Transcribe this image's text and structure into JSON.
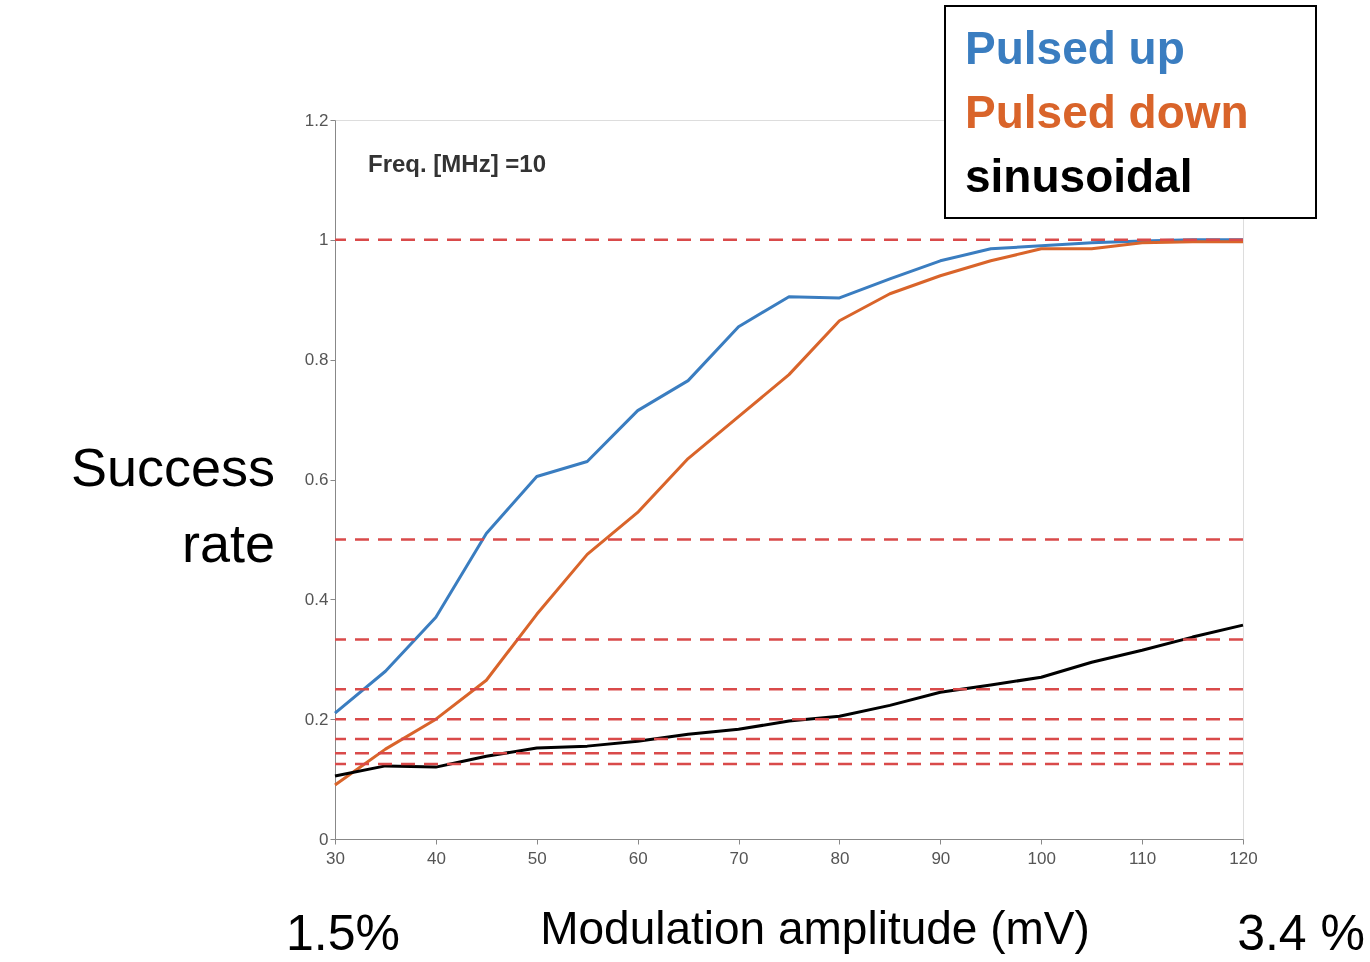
{
  "chart_data": {
    "type": "line",
    "xlabel": "Modulation amplitude (mV)",
    "ylabel": "Success rate",
    "annotations": [
      "Freq. [MHz] =10",
      "1.5%",
      "3.4 %"
    ],
    "x": [
      30,
      35,
      40,
      45,
      50,
      55,
      60,
      65,
      70,
      75,
      80,
      85,
      90,
      95,
      100,
      105,
      110,
      115,
      120
    ],
    "series": [
      {
        "name": "Pulsed up",
        "color": "#3a7dc0",
        "values": [
          0.21,
          0.28,
          0.37,
          0.51,
          0.605,
          0.63,
          0.715,
          0.765,
          0.855,
          0.905,
          0.903,
          0.935,
          0.965,
          0.985,
          0.99,
          0.995,
          0.998,
          1.0,
          1.0
        ]
      },
      {
        "name": "Pulsed down",
        "color": "#d9642a",
        "values": [
          0.09,
          0.15,
          0.2,
          0.265,
          0.375,
          0.475,
          0.545,
          0.635,
          0.705,
          0.775,
          0.865,
          0.91,
          0.94,
          0.965,
          0.985,
          0.985,
          0.995,
          0.997,
          0.997
        ]
      },
      {
        "name": "sinusoidal",
        "color": "#000000",
        "values": [
          0.105,
          0.122,
          0.12,
          0.138,
          0.152,
          0.155,
          0.163,
          0.175,
          0.183,
          0.197,
          0.205,
          0.223,
          0.245,
          0.257,
          0.27,
          0.295,
          0.315,
          0.337,
          0.357
        ]
      }
    ],
    "xlim": [
      30,
      120
    ],
    "xticks": [
      30,
      40,
      50,
      60,
      70,
      80,
      90,
      100,
      110,
      120
    ],
    "ylim": [
      0,
      1.2
    ],
    "yticks": [
      0,
      0.2,
      0.4,
      0.6,
      0.8,
      1,
      1.2
    ],
    "ref_lines": [
      {
        "axis": "y",
        "value": 1,
        "color": "#d94a4a",
        "line_style": "dashed"
      },
      {
        "axis": "y",
        "value": 0.5,
        "color": "#d94a4a",
        "line_style": "dashed"
      },
      {
        "axis": "y",
        "value": 0.333,
        "color": "#d94a4a",
        "line_style": "dashed"
      },
      {
        "axis": "y",
        "value": 0.25,
        "color": "#d94a4a",
        "line_style": "dashed"
      },
      {
        "axis": "y",
        "value": 0.2,
        "color": "#d94a4a",
        "line_style": "dashed"
      },
      {
        "axis": "y",
        "value": 0.167,
        "color": "#d94a4a",
        "line_style": "dashed"
      },
      {
        "axis": "y",
        "value": 0.143,
        "color": "#d94a4a",
        "line_style": "dashed"
      },
      {
        "axis": "y",
        "value": 0.125,
        "color": "#d94a4a",
        "line_style": "dashed"
      }
    ],
    "grid": false,
    "legend": "top right",
    "marker": "none",
    "line_style": "solid"
  }
}
